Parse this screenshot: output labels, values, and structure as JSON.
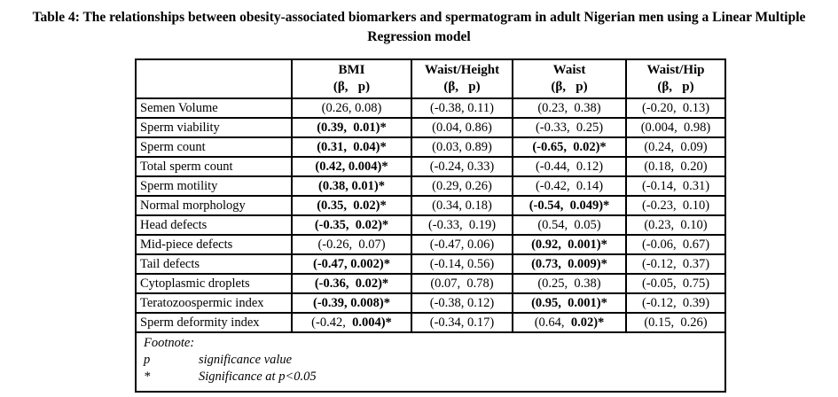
{
  "title": "Table 4: The relationships between obesity-associated biomarkers and spermatogram in adult Nigerian men using a Linear Multiple Regression model",
  "table": {
    "header": {
      "row_label": "",
      "columns": [
        {
          "label": "BMI",
          "sub": "(β,   p)"
        },
        {
          "label": "Waist/Height",
          "sub": "(β,   p)"
        },
        {
          "label": "Waist",
          "sub": "(β,   p)"
        },
        {
          "label": "Waist/Hip",
          "sub": "(β,   p)"
        }
      ]
    },
    "rows": [
      {
        "label": "Semen Volume",
        "cells": [
          [
            {
              "t": "(0.26, 0.08)",
              "b": false
            }
          ],
          [
            {
              "t": "(-0.38, 0.11)",
              "b": false
            }
          ],
          [
            {
              "t": "(0.23,  0.38)",
              "b": false
            }
          ],
          [
            {
              "t": "(-0.20,  0.13)",
              "b": false
            }
          ]
        ]
      },
      {
        "label": "Sperm viability",
        "cells": [
          [
            {
              "t": "(0.39,  0.01)*",
              "b": true
            }
          ],
          [
            {
              "t": "(0.04, 0.86)",
              "b": false
            }
          ],
          [
            {
              "t": "(-0.33,  0.25)",
              "b": false
            }
          ],
          [
            {
              "t": "(0.004,  0.98)",
              "b": false
            }
          ]
        ]
      },
      {
        "label": "Sperm count",
        "cells": [
          [
            {
              "t": "(0.31,  0.04)*",
              "b": true
            }
          ],
          [
            {
              "t": "(0.03, 0.89)",
              "b": false
            }
          ],
          [
            {
              "t": "(-0.65,  0.02)*",
              "b": true
            }
          ],
          [
            {
              "t": "(0.24,  0.09)",
              "b": false
            }
          ]
        ]
      },
      {
        "label": "Total sperm count",
        "cells": [
          [
            {
              "t": "(0.42, 0.004)*",
              "b": true
            }
          ],
          [
            {
              "t": "(-0.24, 0.33)",
              "b": false
            }
          ],
          [
            {
              "t": "(-0.44,  0.12)",
              "b": false
            }
          ],
          [
            {
              "t": "(0.18,  0.20)",
              "b": false
            }
          ]
        ]
      },
      {
        "label": "Sperm motility",
        "cells": [
          [
            {
              "t": "(0.38, 0.01)*",
              "b": true
            }
          ],
          [
            {
              "t": "(0.29, 0.26)",
              "b": false
            }
          ],
          [
            {
              "t": "(-0.42,  0.14)",
              "b": false
            }
          ],
          [
            {
              "t": "(-0.14,  0.31)",
              "b": false
            }
          ]
        ]
      },
      {
        "label": "Normal morphology",
        "cells": [
          [
            {
              "t": "(0.35,  0.02)*",
              "b": true
            }
          ],
          [
            {
              "t": "(0.34, 0.18)",
              "b": false
            }
          ],
          [
            {
              "t": "(-0.54,  0.049)*",
              "b": true
            }
          ],
          [
            {
              "t": "(-0.23,  0.10)",
              "b": false
            }
          ]
        ]
      },
      {
        "label": "Head defects",
        "cells": [
          [
            {
              "t": "(-0.35,  0.02)*",
              "b": true
            }
          ],
          [
            {
              "t": "(-0.33,  0.19)",
              "b": false
            }
          ],
          [
            {
              "t": "(0.54,  0.05)",
              "b": false
            }
          ],
          [
            {
              "t": "(0.23,  0.10)",
              "b": false
            }
          ]
        ]
      },
      {
        "label": "Mid-piece defects",
        "cells": [
          [
            {
              "t": "(-0.26,  0.07)",
              "b": false
            }
          ],
          [
            {
              "t": "(-0.47, 0.06)",
              "b": false
            }
          ],
          [
            {
              "t": "(0.92,  0.001)*",
              "b": true
            }
          ],
          [
            {
              "t": "(-0.06,  0.67)",
              "b": false
            }
          ]
        ]
      },
      {
        "label": "Tail defects",
        "cells": [
          [
            {
              "t": "(-0.47, 0.002)*",
              "b": true
            }
          ],
          [
            {
              "t": "(-0.14, 0.56)",
              "b": false
            }
          ],
          [
            {
              "t": "(0.73,  0.009)*",
              "b": true
            }
          ],
          [
            {
              "t": "(-0.12,  0.37)",
              "b": false
            }
          ]
        ]
      },
      {
        "label": "Cytoplasmic droplets",
        "cells": [
          [
            {
              "t": "(-0.36,  0.02)*",
              "b": true
            }
          ],
          [
            {
              "t": "(0.07,  0.78)",
              "b": false
            }
          ],
          [
            {
              "t": "(0.25,  0.38)",
              "b": false
            }
          ],
          [
            {
              "t": "(-0.05,  0.75)",
              "b": false
            }
          ]
        ]
      },
      {
        "label": "Teratozoospermic index",
        "cells": [
          [
            {
              "t": "(-0.39, 0.008)*",
              "b": true
            }
          ],
          [
            {
              "t": "(-0.38, 0.12)",
              "b": false
            }
          ],
          [
            {
              "t": "(0.95,  0.001)*",
              "b": true
            }
          ],
          [
            {
              "t": "(-0.12,  0.39)",
              "b": false
            }
          ]
        ]
      },
      {
        "label": "Sperm deformity index",
        "cells": [
          [
            {
              "t": "(-0.42,  ",
              "b": false
            },
            {
              "t": "0.004)*",
              "b": true
            }
          ],
          [
            {
              "t": "(-0.34, 0.17)",
              "b": false
            }
          ],
          [
            {
              "t": "(0.64,  ",
              "b": false
            },
            {
              "t": "0.02)*",
              "b": true
            }
          ],
          [
            {
              "t": "(0.15,  0.26)",
              "b": false
            }
          ]
        ]
      }
    ]
  },
  "footnote": {
    "heading": "Footnote:",
    "entries": [
      {
        "symbol": "p",
        "description": "significance value"
      },
      {
        "symbol": "*",
        "description": "Significance at p<0.05"
      }
    ]
  }
}
